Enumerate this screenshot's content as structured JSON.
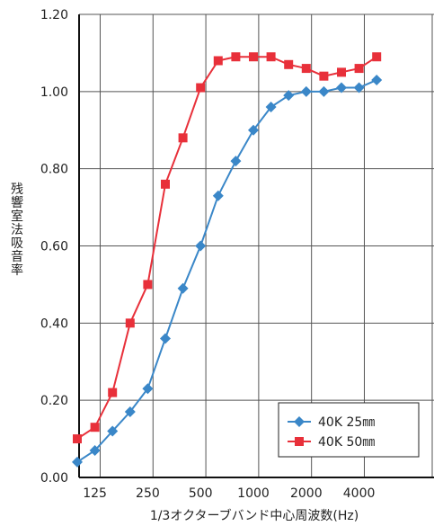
{
  "chart_data": {
    "type": "line",
    "xlabel": "1/3オクターブバンド中心周波数(Hz)",
    "ylabel": "残響室法吸音率",
    "ylim": [
      0,
      1.2
    ],
    "yticks": [
      "0.00",
      "0.20",
      "0.40",
      "0.60",
      "0.80",
      "1.00",
      "1.20"
    ],
    "ytick_values": [
      0,
      0.2,
      0.4,
      0.6,
      0.8,
      1.0,
      1.2
    ],
    "x": [
      "100",
      "125",
      "160",
      "200",
      "250",
      "315",
      "400",
      "500",
      "630",
      "800",
      "1000",
      "1250",
      "1600",
      "2000",
      "2500",
      "3150",
      "4000",
      "5000"
    ],
    "xtick_labels": [
      {
        "index": 1,
        "label": "125"
      },
      {
        "index": 4,
        "label": "250"
      },
      {
        "index": 7,
        "label": "500"
      },
      {
        "index": 10,
        "label": "1000"
      },
      {
        "index": 13,
        "label": "2000"
      },
      {
        "index": 16,
        "label": "4000"
      }
    ],
    "grid": true,
    "legend_position": "bottom-right",
    "series": [
      {
        "name": "40K 25㎜",
        "color": "#3a87c8",
        "marker": "diamond",
        "values": [
          0.04,
          0.07,
          0.12,
          0.17,
          0.23,
          0.36,
          0.49,
          0.6,
          0.73,
          0.82,
          0.9,
          0.96,
          0.99,
          1.0,
          1.0,
          1.01,
          1.01,
          1.03
        ]
      },
      {
        "name": "40K 50㎜",
        "color": "#e8303a",
        "marker": "square",
        "values": [
          0.1,
          0.13,
          0.22,
          0.4,
          0.5,
          0.76,
          0.88,
          1.01,
          1.08,
          1.09,
          1.09,
          1.09,
          1.07,
          1.06,
          1.04,
          1.05,
          1.06,
          1.09
        ]
      }
    ]
  }
}
